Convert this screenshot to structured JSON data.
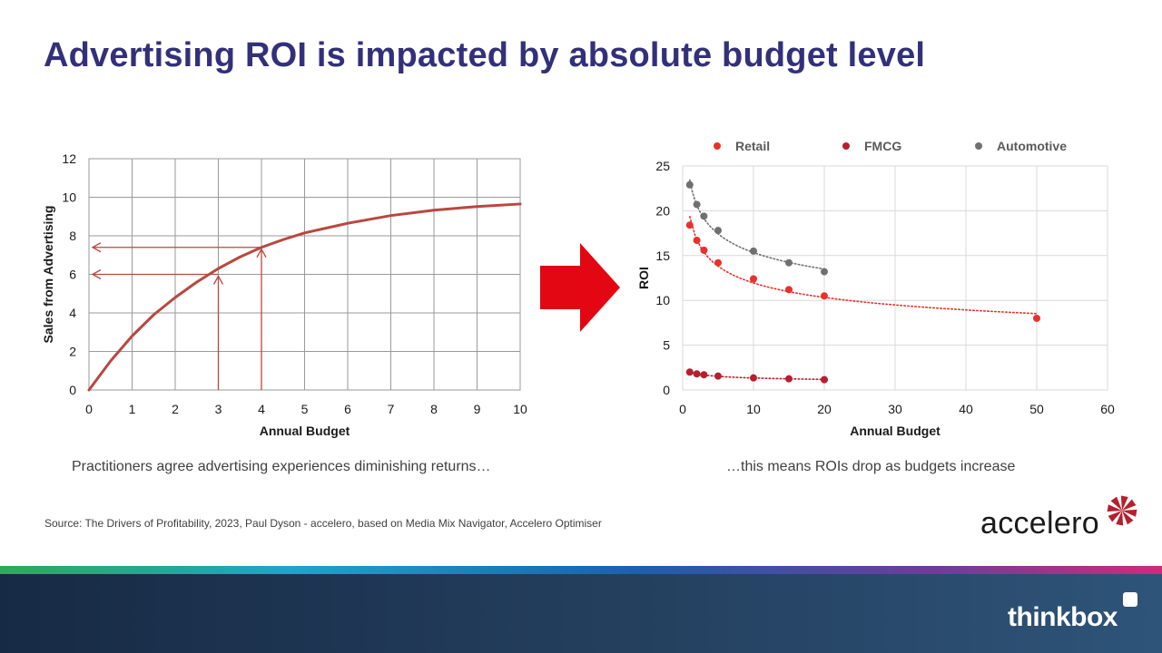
{
  "title": "Advertising ROI is impacted by absolute budget level",
  "left_caption": "Practitioners agree advertising experiences diminishing returns…",
  "right_caption": "…this means ROIs drop as budgets increase",
  "source": "Source: The  Drivers  of Profitability, 2023, Paul Dyson - accelero, based on Media Mix Navigator,  Accelero Optimiser",
  "logos": {
    "accelero": "accelero",
    "thinkbox": "thinkbox"
  },
  "colors": {
    "title": "#33307a",
    "curve": "#b8483f",
    "arrow": "#e30613",
    "retail": "#e8312a",
    "fmcg": "#b51f2e",
    "automotive": "#707070"
  },
  "chart_data": [
    {
      "type": "line",
      "title": "",
      "xlabel": "Annual Budget",
      "ylabel": "Sales from Advertising",
      "xlim": [
        0,
        10
      ],
      "ylim": [
        0,
        12
      ],
      "x_ticks": [
        "0",
        "1",
        "2",
        "3",
        "4",
        "5",
        "6",
        "7",
        "8",
        "9",
        "10"
      ],
      "y_ticks": [
        "0",
        "2",
        "4",
        "6",
        "8",
        "10",
        "12"
      ],
      "grid": true,
      "series": [
        {
          "x": [
            0,
            0.5,
            1,
            1.5,
            2,
            2.5,
            3,
            3.5,
            4,
            4.5,
            5,
            6,
            7,
            8,
            9,
            10
          ],
          "y": [
            0,
            1.5,
            2.8,
            3.9,
            4.8,
            5.6,
            6.3,
            6.9,
            7.4,
            7.8,
            8.15,
            8.65,
            9.05,
            9.33,
            9.52,
            9.65
          ]
        }
      ],
      "annotations": [
        {
          "x": 3,
          "y": 6.0
        },
        {
          "x": 4,
          "y": 7.4
        }
      ]
    },
    {
      "type": "scatter",
      "title": "",
      "xlabel": "Annual Budget",
      "ylabel": "ROI",
      "xlim": [
        0,
        60
      ],
      "ylim": [
        0,
        25
      ],
      "x_ticks": [
        "0",
        "10",
        "20",
        "30",
        "40",
        "50",
        "60"
      ],
      "y_ticks": [
        "0",
        "5",
        "10",
        "15",
        "20",
        "25"
      ],
      "grid": true,
      "legend": "top",
      "series": [
        {
          "name": "Retail",
          "color": "#e8312a",
          "x": [
            1,
            2,
            3,
            5,
            10,
            15,
            20,
            50
          ],
          "y": [
            18.4,
            16.7,
            15.6,
            14.2,
            12.4,
            11.2,
            10.5,
            8.0
          ],
          "trend": "power"
        },
        {
          "name": "FMCG",
          "color": "#b51f2e",
          "x": [
            1,
            2,
            3,
            5,
            10,
            15,
            20
          ],
          "y": [
            2.0,
            1.8,
            1.7,
            1.55,
            1.35,
            1.25,
            1.15
          ],
          "trend": "power"
        },
        {
          "name": "Automotive",
          "color": "#707070",
          "x": [
            1,
            2,
            3,
            5,
            10,
            15,
            20
          ],
          "y": [
            22.9,
            20.7,
            19.4,
            17.8,
            15.5,
            14.2,
            13.2
          ],
          "trend": "power"
        }
      ]
    }
  ]
}
